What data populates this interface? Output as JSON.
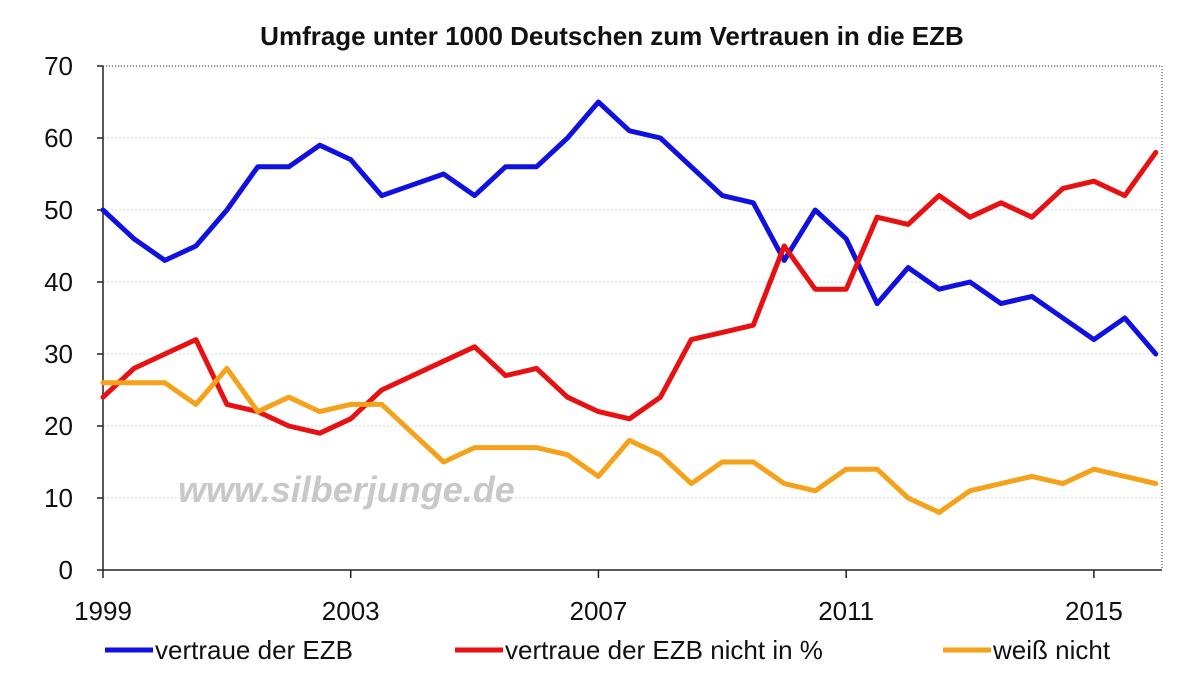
{
  "chart_data": {
    "type": "line",
    "title": "Umfrage unter 1000 Deutschen zum Vertrauen in die EZB",
    "xlabel": "",
    "ylabel": "",
    "xlim": [
      1999,
      2016.1
    ],
    "ylim": [
      0,
      70
    ],
    "yticks": [
      0,
      10,
      20,
      30,
      40,
      50,
      60,
      70
    ],
    "xticks": [
      1999,
      2003,
      2007,
      2011,
      2015
    ],
    "grid": true,
    "legend": "bottom",
    "x": [
      1999.0,
      1999.5,
      2000.0,
      2000.5,
      2001.0,
      2001.5,
      2002.0,
      2002.5,
      2003.0,
      2003.5,
      2004.0,
      2004.5,
      2005.0,
      2005.5,
      2006.0,
      2006.5,
      2007.0,
      2007.5,
      2008.0,
      2008.5,
      2009.0,
      2009.5,
      2010.0,
      2010.5,
      2011.0,
      2011.5,
      2012.0,
      2012.5,
      2013.0,
      2013.5,
      2014.0,
      2014.5,
      2015.0,
      2015.5,
      2016.0
    ],
    "series": [
      {
        "name": "vertraue der EZB",
        "color": "#1010e0",
        "values": [
          50,
          46,
          43,
          45,
          50,
          56,
          56,
          59,
          57,
          52,
          53.5,
          55,
          52,
          56,
          56,
          60,
          65,
          61,
          60,
          56,
          52,
          51,
          43,
          50,
          46,
          37,
          42,
          39,
          40,
          37,
          38,
          35,
          32,
          35,
          30
        ]
      },
      {
        "name": "vertraue der EZB nicht in %",
        "color": "#e81010",
        "values": [
          24,
          28,
          30,
          32,
          23,
          22,
          20,
          19,
          21,
          25,
          27,
          29,
          31,
          27,
          28,
          24,
          22,
          21,
          24,
          32,
          33,
          34,
          45,
          39,
          39,
          49,
          48,
          52,
          49,
          51,
          49,
          53,
          54,
          52,
          58
        ]
      },
      {
        "name": "weiß nicht",
        "color": "#f5a21a",
        "values": [
          26,
          26,
          26,
          23,
          28,
          22,
          24,
          22,
          23,
          23,
          19,
          15,
          17,
          17,
          17,
          16,
          13,
          18,
          16,
          12,
          15,
          15,
          12,
          11,
          14,
          14,
          10,
          8,
          11,
          12,
          13,
          12,
          14,
          13,
          12
        ]
      }
    ],
    "annotations": [
      "www.silberjunge.de"
    ]
  }
}
